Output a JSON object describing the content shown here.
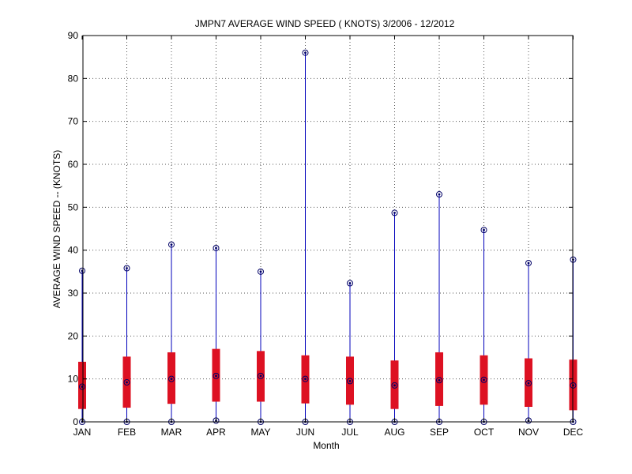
{
  "chart_data": {
    "type": "box",
    "title": "JMPN7  AVERAGE WIND SPEED ( KNOTS) 3/2006 - 12/2012",
    "xlabel": "Month",
    "ylabel": "AVERAGE WIND SPEED -- (KNOTS)",
    "ylim": [
      0,
      90
    ],
    "yticks": [
      0,
      10,
      20,
      30,
      40,
      50,
      60,
      70,
      80,
      90
    ],
    "grid": true,
    "categories": [
      "JAN",
      "FEB",
      "MAR",
      "APR",
      "MAY",
      "JUN",
      "JUL",
      "AUG",
      "SEP",
      "OCT",
      "NOV",
      "DEC"
    ],
    "min": [
      0,
      0,
      0,
      0.3,
      0,
      0,
      0,
      0,
      0,
      0,
      0.3,
      0
    ],
    "q1": [
      3,
      3.3,
      4.2,
      4.7,
      4.7,
      4.3,
      4.0,
      3.0,
      3.7,
      4.0,
      3.5,
      2.7
    ],
    "median": [
      8.2,
      9.2,
      10.0,
      10.7,
      10.7,
      10.0,
      9.5,
      8.5,
      9.7,
      9.8,
      9.0,
      8.5
    ],
    "q3": [
      14.0,
      15.2,
      16.2,
      17.0,
      16.5,
      15.5,
      15.2,
      14.3,
      16.2,
      15.5,
      14.8,
      14.5
    ],
    "max": [
      35.2,
      35.8,
      41.3,
      40.5,
      35.0,
      86.0,
      32.3,
      48.7,
      53.0,
      44.7,
      37.0,
      37.8
    ],
    "colors": {
      "whisker": "#0000bb",
      "box": "#dd1122",
      "marker": "#000066",
      "grid": "#555555"
    }
  }
}
